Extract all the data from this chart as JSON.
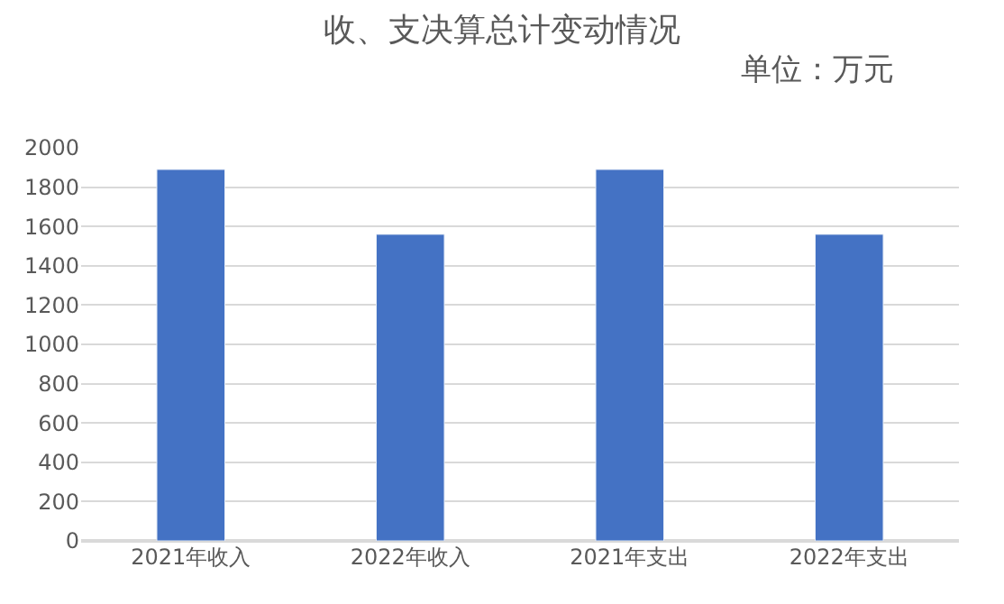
{
  "chart_data": {
    "type": "bar",
    "title": "收、支决算总计变动情况",
    "subtitle": "单位：万元",
    "categories": [
      "2021年收入",
      "2022年收入",
      "2021年支出",
      "2022年支出"
    ],
    "values": [
      1890,
      1560,
      1890,
      1560
    ],
    "color": "#4472c4",
    "ylim": [
      0,
      2000
    ],
    "yticks": [
      0,
      200,
      400,
      600,
      800,
      1000,
      1200,
      1400,
      1600,
      1800,
      2000
    ],
    "grid": "y"
  }
}
